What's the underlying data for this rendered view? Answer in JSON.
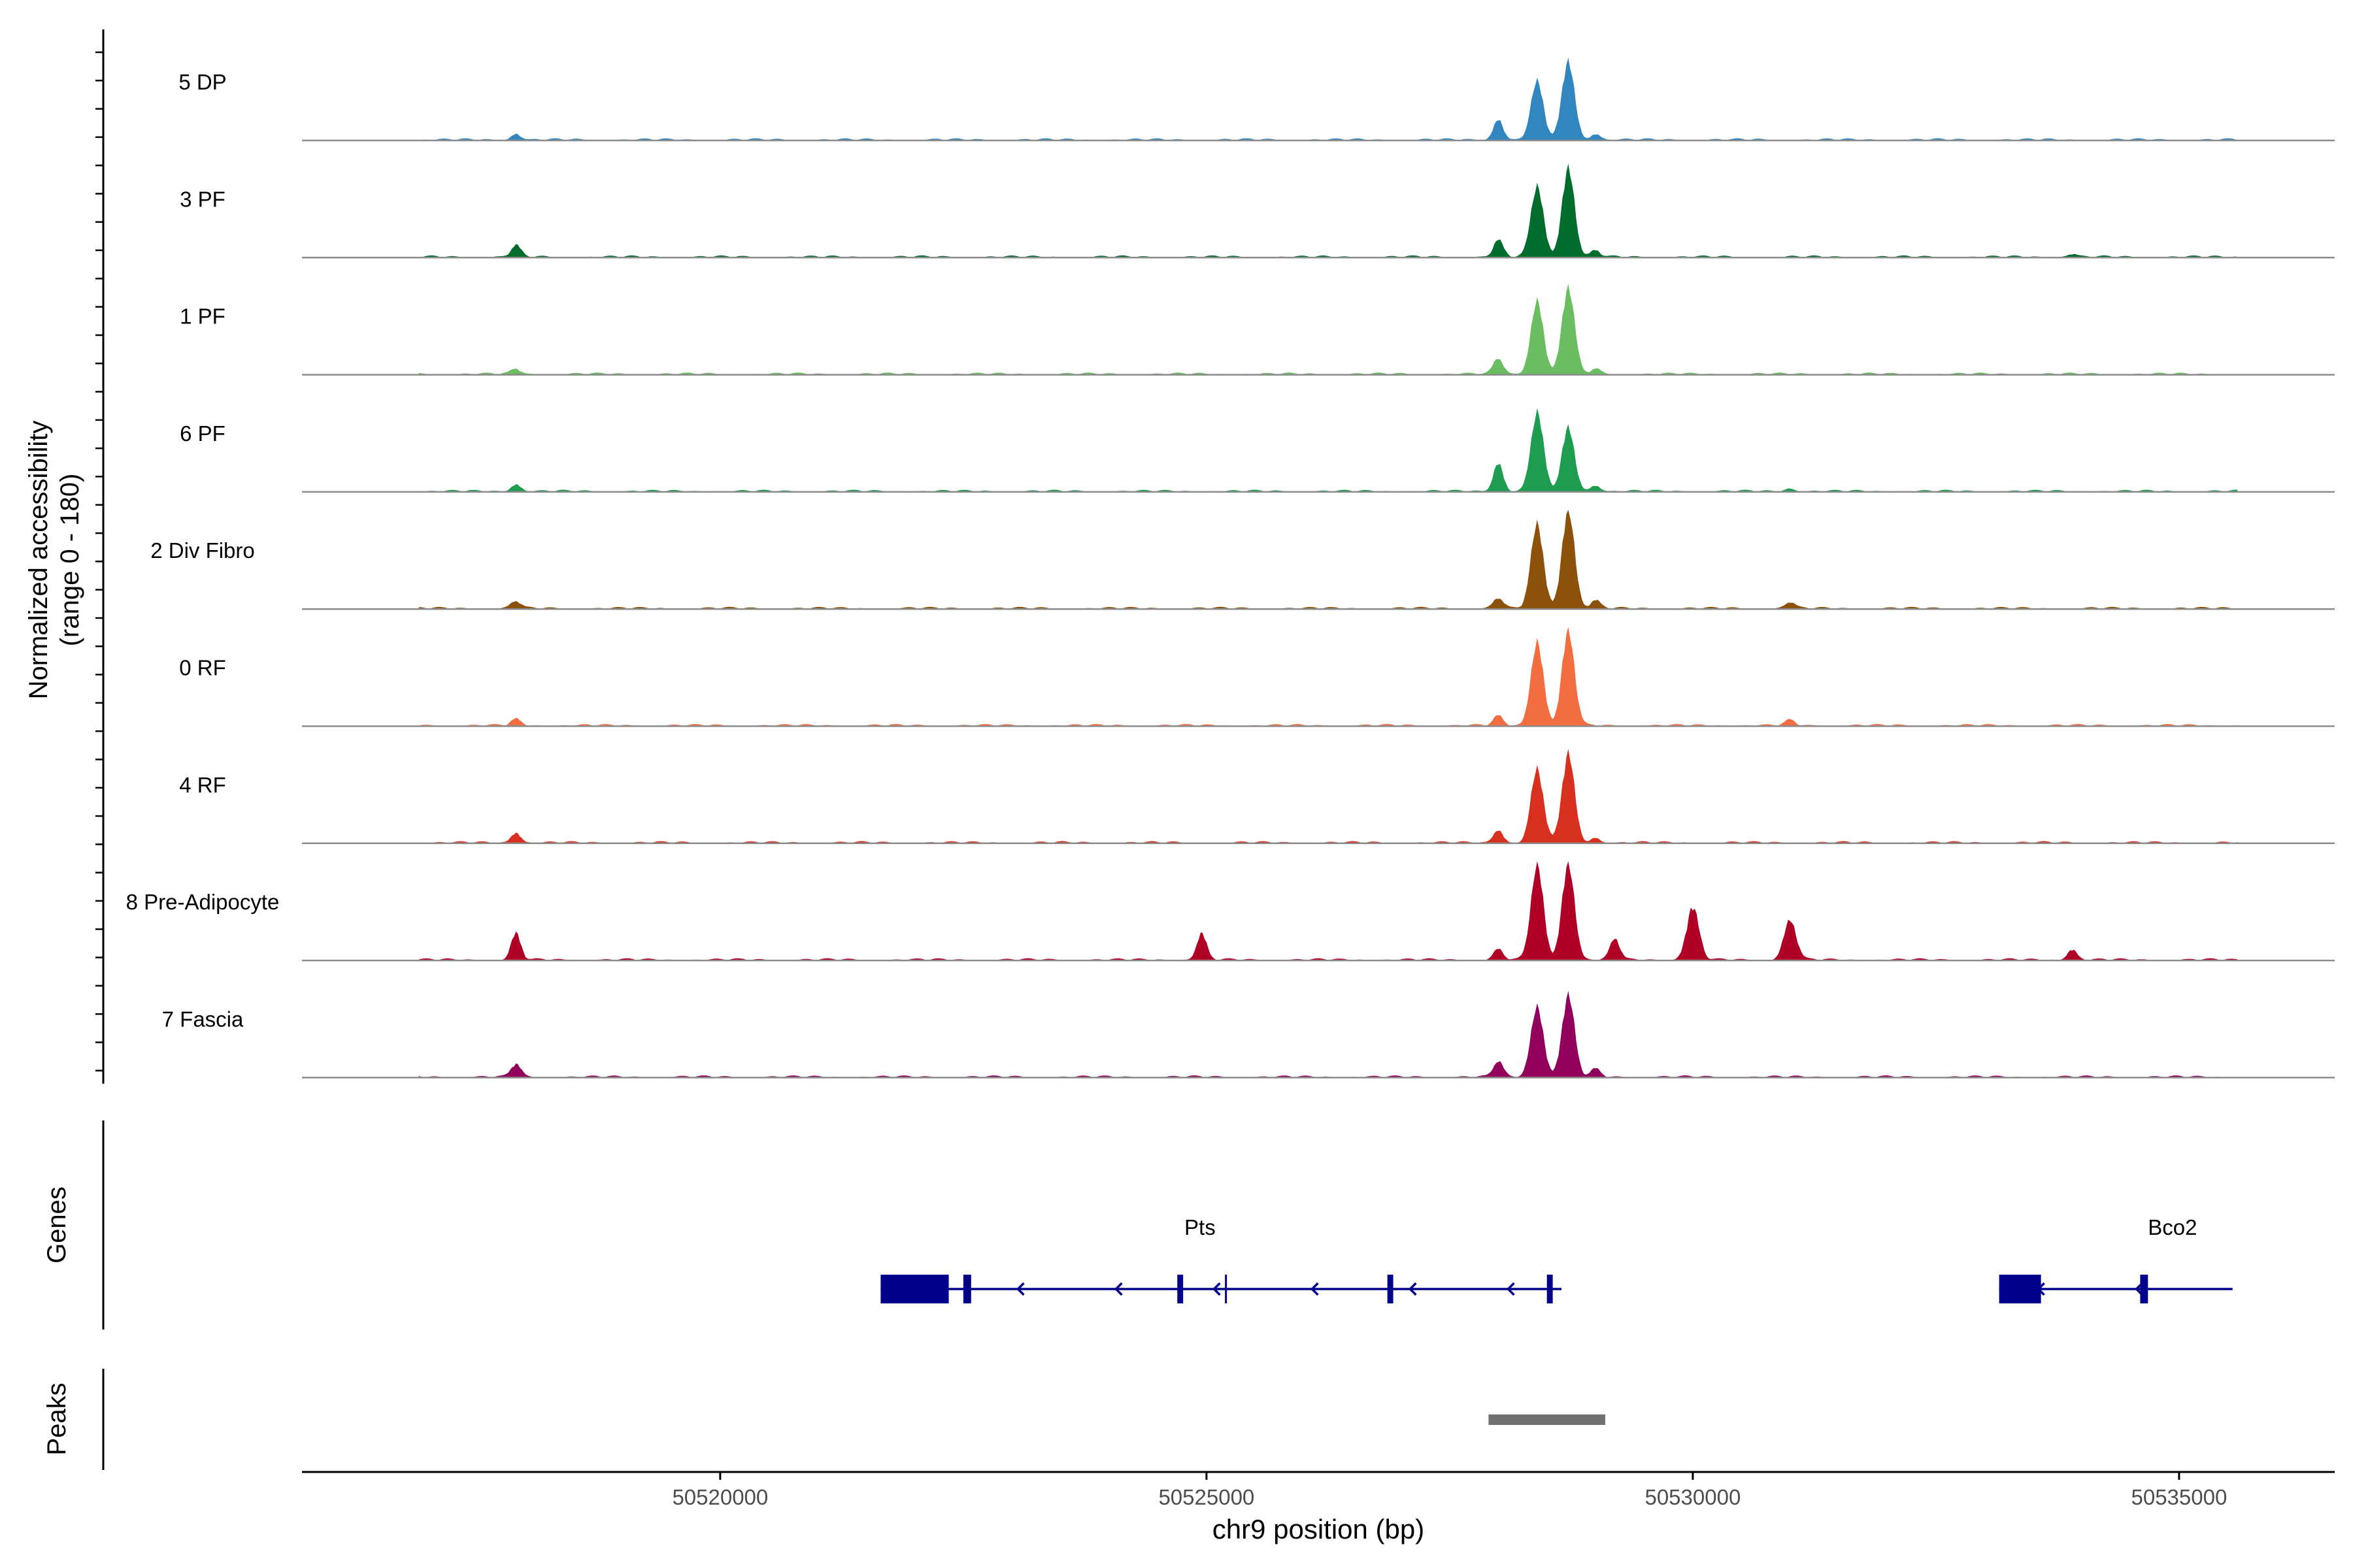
{
  "chart_data": {
    "type": "area",
    "ylabel_line1": "Normalized accessibility",
    "ylabel_line2": "(range 0 - 180)",
    "xlabel": "chr9 position (bp)",
    "xlim": [
      50515700,
      50536600
    ],
    "ylim": [
      0,
      180
    ],
    "xticks": [
      50520000,
      50525000,
      50530000,
      50535000
    ],
    "xtick_labels": [
      "50520000",
      "50525000",
      "50530000",
      "50535000"
    ],
    "grid": false,
    "legend": "none",
    "tracks": [
      {
        "name": "5 DP",
        "color": "#3186c0",
        "peaks": [
          [
            50517900,
            12
          ],
          [
            50528000,
            40
          ],
          [
            50528400,
            110
          ],
          [
            50528720,
            150
          ],
          [
            50529000,
            12
          ]
        ]
      },
      {
        "name": "3 PF",
        "color": "#006d2c",
        "peaks": [
          [
            50517900,
            22
          ],
          [
            50528000,
            32
          ],
          [
            50528400,
            135
          ],
          [
            50528720,
            170
          ],
          [
            50529000,
            12
          ],
          [
            50533900,
            6
          ]
        ]
      },
      {
        "name": "1 PF",
        "color": "#6abd60",
        "peaks": [
          [
            50517900,
            10
          ],
          [
            50528000,
            30
          ],
          [
            50528400,
            140
          ],
          [
            50528720,
            165
          ],
          [
            50529000,
            10
          ]
        ]
      },
      {
        "name": "6 PF",
        "color": "#1e9d51",
        "peaks": [
          [
            50517900,
            14
          ],
          [
            50528000,
            55
          ],
          [
            50528400,
            150
          ],
          [
            50528720,
            120
          ],
          [
            50529000,
            12
          ],
          [
            50531000,
            6
          ]
        ]
      },
      {
        "name": "2 Div Fibro",
        "color": "#8c510a",
        "peaks": [
          [
            50517900,
            14
          ],
          [
            50528000,
            20
          ],
          [
            50528400,
            160
          ],
          [
            50528720,
            190
          ],
          [
            50529000,
            15
          ],
          [
            50531000,
            12
          ]
        ]
      },
      {
        "name": "0 RF",
        "color": "#f26e40",
        "peaks": [
          [
            50517900,
            12
          ],
          [
            50528000,
            18
          ],
          [
            50528400,
            160
          ],
          [
            50528720,
            180
          ],
          [
            50531000,
            10
          ]
        ]
      },
      {
        "name": "4 RF",
        "color": "#d7301f",
        "peaks": [
          [
            50517900,
            20
          ],
          [
            50528000,
            25
          ],
          [
            50528400,
            140
          ],
          [
            50528720,
            170
          ],
          [
            50529000,
            10
          ]
        ]
      },
      {
        "name": "8 Pre-Adipocyte",
        "color": "#b00026",
        "peaks": [
          [
            50517900,
            50
          ],
          [
            50524950,
            50
          ],
          [
            50528000,
            20
          ],
          [
            50528400,
            180
          ],
          [
            50528720,
            185
          ],
          [
            50529200,
            40
          ],
          [
            50530000,
            100
          ],
          [
            50531000,
            75
          ],
          [
            50533900,
            20
          ]
        ]
      },
      {
        "name": "7 Fascia",
        "color": "#91005a",
        "peaks": [
          [
            50517900,
            25
          ],
          [
            50528000,
            30
          ],
          [
            50528400,
            135
          ],
          [
            50528720,
            155
          ],
          [
            50529000,
            15
          ]
        ]
      }
    ],
    "genes_label": "Genes",
    "peaks_label": "Peaks",
    "genes": [
      {
        "name": "Pts",
        "start": 50521650,
        "end": 50528650,
        "strand": "-",
        "exons": [
          [
            50521650,
            50522350
          ],
          [
            50522500,
            50522580
          ],
          [
            50524700,
            50524760
          ],
          [
            50526860,
            50526920
          ],
          [
            50528500,
            50528560
          ]
        ],
        "marks": [
          50525200
        ]
      },
      {
        "name": "Bco2",
        "start": 50533150,
        "end": 50535550,
        "strand": "-",
        "exons": [
          [
            50533150,
            50533580
          ],
          [
            50534600,
            50534680
          ]
        ],
        "marks": []
      }
    ],
    "peak_regions": [
      [
        50527900,
        50529100
      ]
    ],
    "gene_color": "#00008b",
    "peak_color": "#707070"
  }
}
